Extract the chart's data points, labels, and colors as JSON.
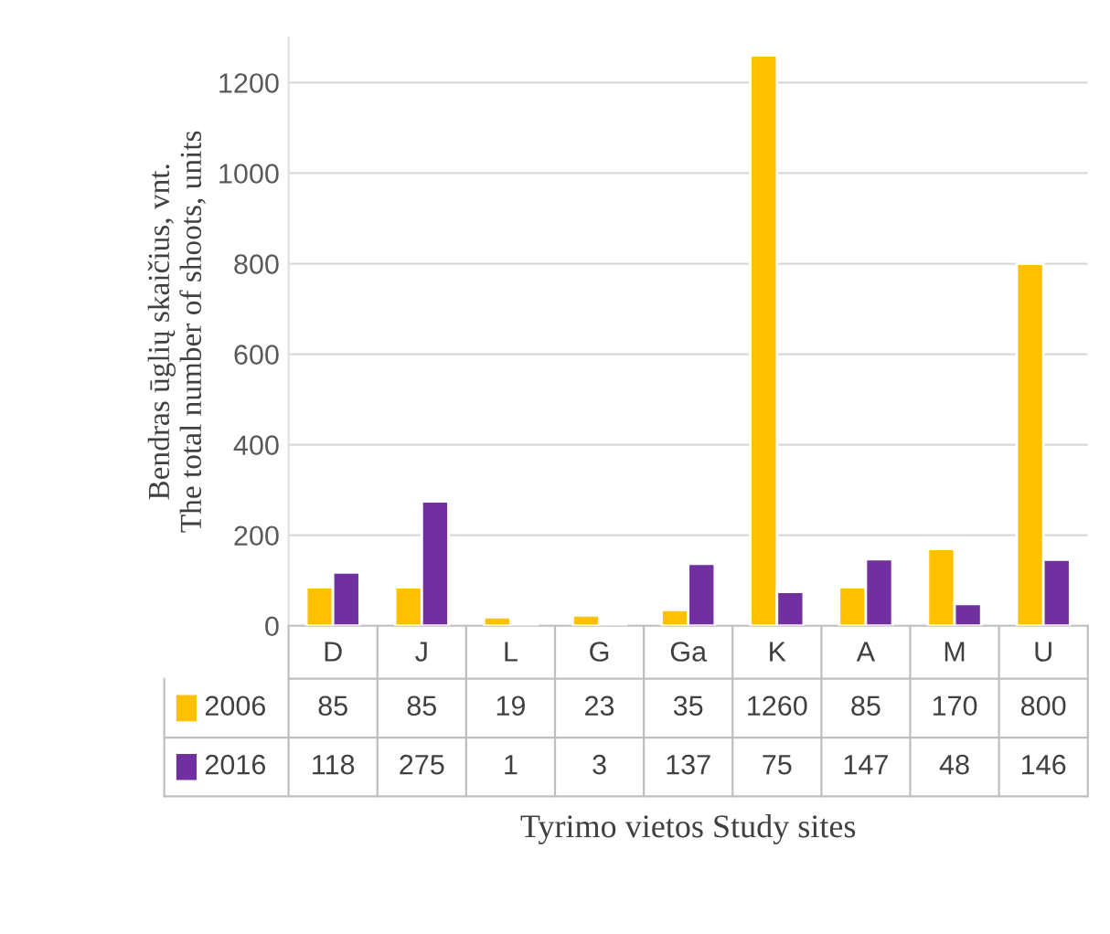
{
  "chart_data": {
    "type": "bar",
    "categories": [
      "D",
      "J",
      "L",
      "G",
      "Ga",
      "K",
      "A",
      "M",
      "U"
    ],
    "series": [
      {
        "name": "2006",
        "color": "#ffc000",
        "values": [
          85,
          85,
          19,
          23,
          35,
          1260,
          85,
          170,
          800
        ]
      },
      {
        "name": "2016",
        "color": "#7030a0",
        "values": [
          118,
          275,
          1,
          3,
          137,
          75,
          147,
          48,
          146
        ]
      }
    ],
    "ylim": [
      0,
      1300
    ],
    "yticks": [
      0,
      200,
      400,
      600,
      800,
      1000,
      1200
    ],
    "ylabel": "Bendras ūglių skaičius, vnt.\nThe total number of shoots, units",
    "xlabel": "Tyrimo vietos Study sites",
    "grid": "y",
    "legend": "bottom",
    "data_labels": true
  }
}
